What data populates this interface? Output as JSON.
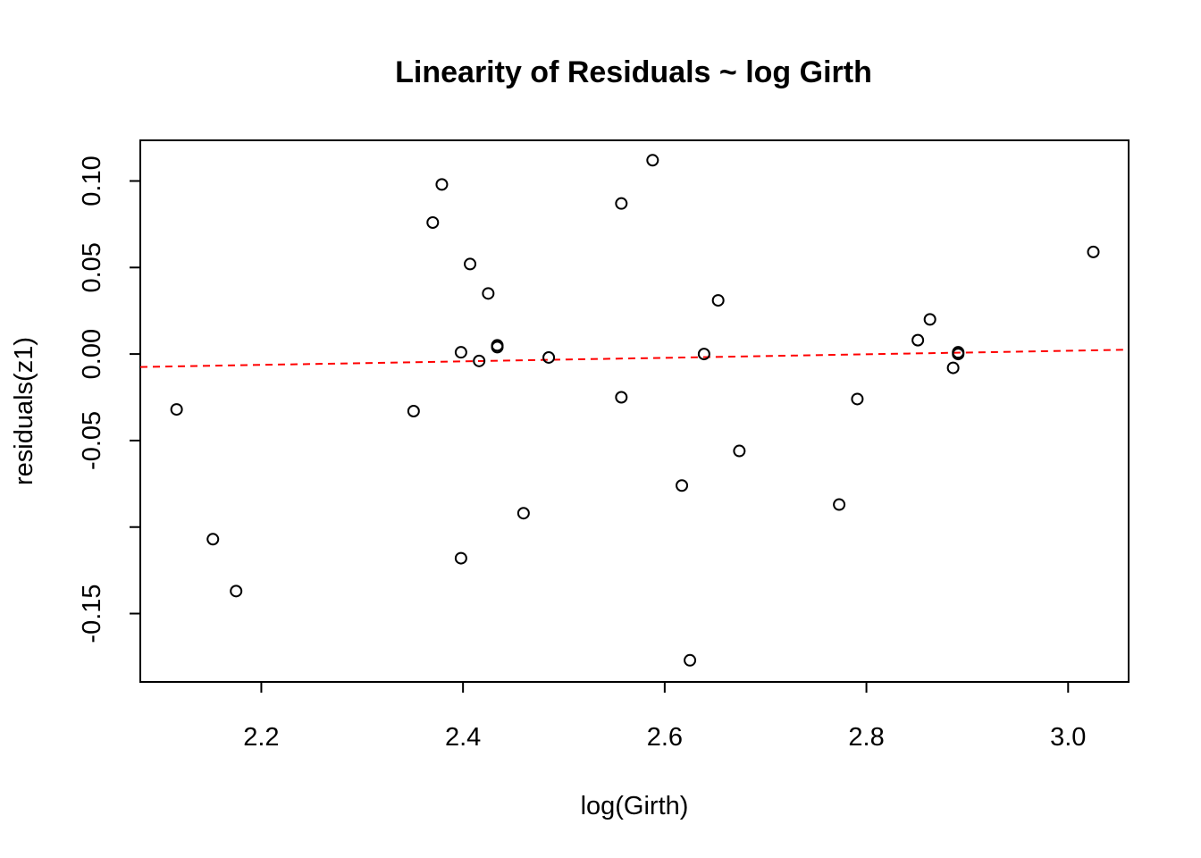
{
  "chart_data": {
    "type": "scatter",
    "title": "Linearity of Residuals ~ log Girth",
    "xlabel": "log(Girth)",
    "ylabel": "residuals(z1)",
    "xlim": [
      2.08,
      3.06
    ],
    "ylim": [
      -0.1895,
      0.1235
    ],
    "x_ticks": [
      2.2,
      2.4,
      2.6,
      2.8,
      3.0
    ],
    "x_tick_labels": [
      "2.2",
      "2.4",
      "2.6",
      "2.8",
      "3.0"
    ],
    "y_ticks": [
      -0.15,
      -0.1,
      -0.05,
      0.0,
      0.05,
      0.1
    ],
    "y_tick_labels": [
      "-0.15",
      "",
      "-0.05",
      "0.00",
      "0.05",
      "0.10"
    ],
    "grid": false,
    "points": [
      {
        "x": 2.116,
        "y": -0.032
      },
      {
        "x": 2.152,
        "y": -0.107
      },
      {
        "x": 2.175,
        "y": -0.137
      },
      {
        "x": 2.351,
        "y": -0.033
      },
      {
        "x": 2.37,
        "y": 0.076
      },
      {
        "x": 2.379,
        "y": 0.098
      },
      {
        "x": 2.398,
        "y": 0.001
      },
      {
        "x": 2.398,
        "y": -0.118
      },
      {
        "x": 2.407,
        "y": 0.052
      },
      {
        "x": 2.416,
        "y": -0.004
      },
      {
        "x": 2.425,
        "y": 0.035
      },
      {
        "x": 2.434,
        "y": 0.004
      },
      {
        "x": 2.434,
        "y": 0.005
      },
      {
        "x": 2.46,
        "y": -0.092
      },
      {
        "x": 2.485,
        "y": -0.002
      },
      {
        "x": 2.557,
        "y": 0.087
      },
      {
        "x": 2.557,
        "y": -0.025
      },
      {
        "x": 2.588,
        "y": 0.112
      },
      {
        "x": 2.617,
        "y": -0.076
      },
      {
        "x": 2.625,
        "y": -0.177
      },
      {
        "x": 2.639,
        "y": 0.0
      },
      {
        "x": 2.653,
        "y": 0.031
      },
      {
        "x": 2.674,
        "y": -0.056
      },
      {
        "x": 2.773,
        "y": -0.087
      },
      {
        "x": 2.791,
        "y": -0.026
      },
      {
        "x": 2.851,
        "y": 0.008
      },
      {
        "x": 2.863,
        "y": 0.02
      },
      {
        "x": 2.886,
        "y": -0.008
      },
      {
        "x": 2.891,
        "y": 0.001
      },
      {
        "x": 2.891,
        "y": 0.0
      },
      {
        "x": 3.025,
        "y": 0.059
      }
    ],
    "reference_line": {
      "style": "dashed",
      "color": "#ff0000",
      "x": [
        2.08,
        3.06
      ],
      "y": [
        -0.0075,
        0.0025
      ]
    }
  }
}
